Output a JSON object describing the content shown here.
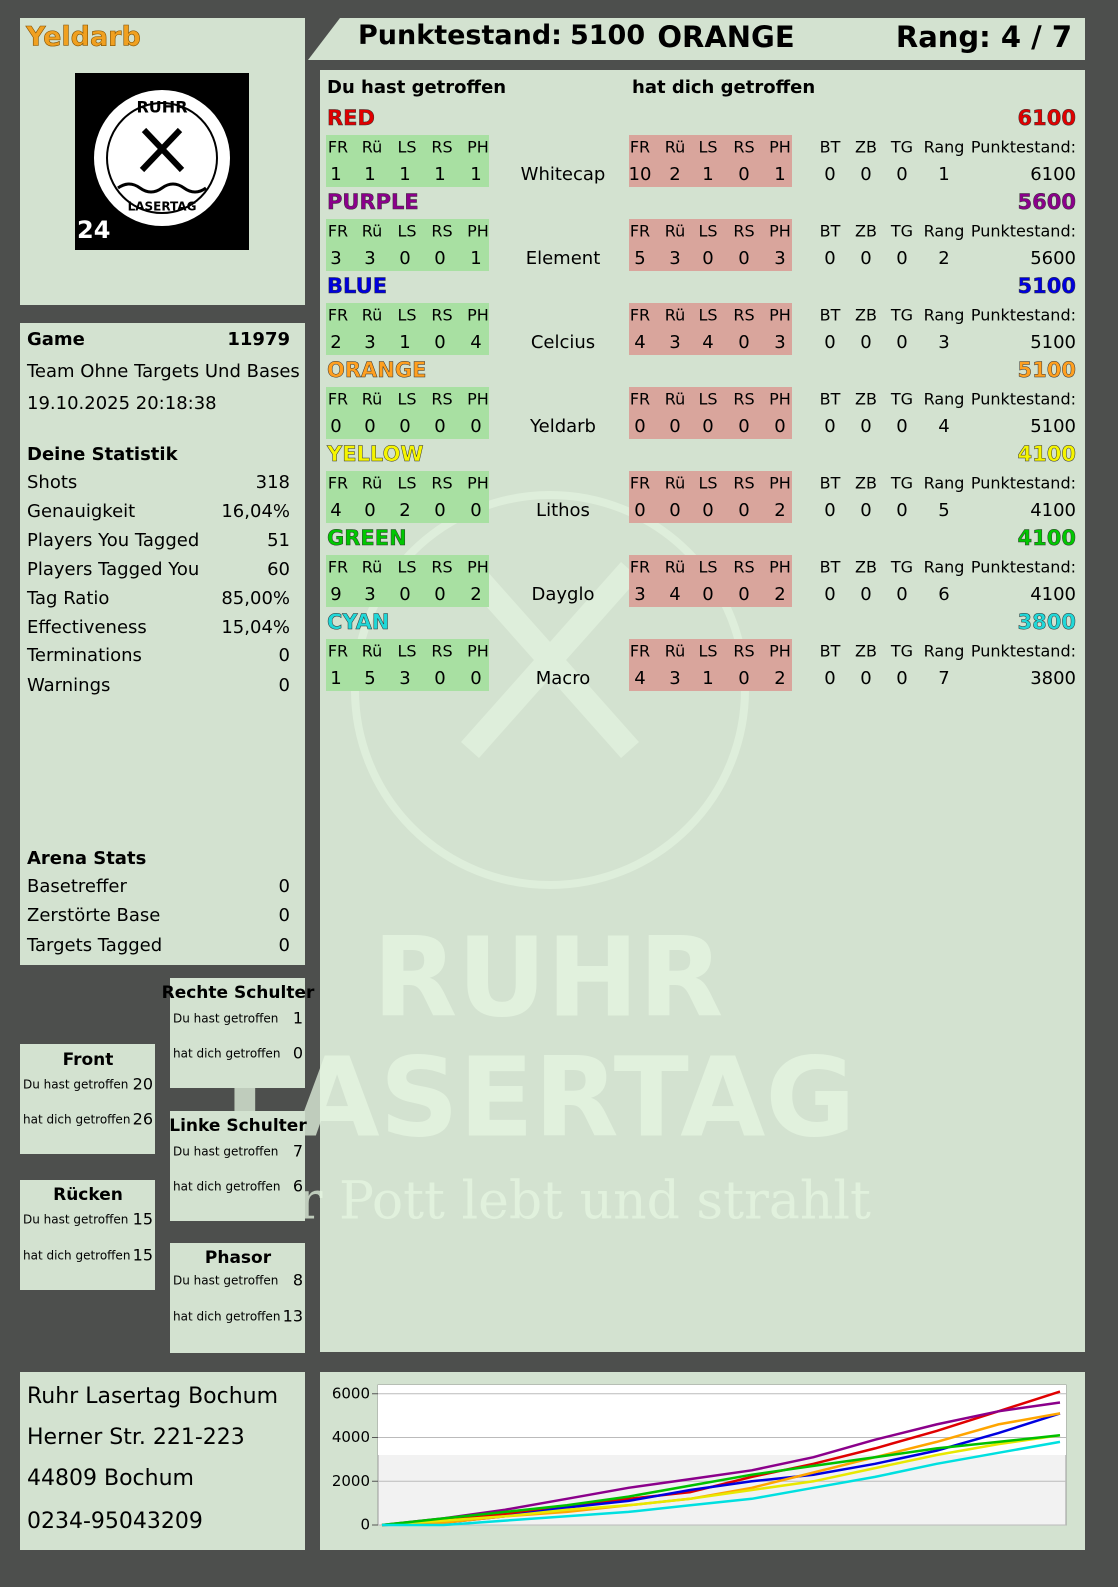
{
  "header": {
    "player": "Yeldarb",
    "score_label": "Punktestand:",
    "score": 5100,
    "team": "ORANGE",
    "rank": "Rang: 4 / 7"
  },
  "logo": {
    "top": "RUHR",
    "bottom": "LASERTAG",
    "badge": "24"
  },
  "game": {
    "label": "Game",
    "id": 11979,
    "mode": "Team Ohne Targets Und Bases",
    "datetime": "19.10.2025 20:18:38"
  },
  "stats": {
    "title": "Deine Statistik",
    "rows": [
      [
        "Shots",
        "318"
      ],
      [
        "Genauigkeit",
        "16,04%"
      ],
      [
        "Players You Tagged",
        "51"
      ],
      [
        "Players Tagged You",
        "60"
      ],
      [
        "Tag Ratio",
        "85,00%"
      ],
      [
        "Effectiveness",
        "15,04%"
      ],
      [
        "Terminations",
        "0"
      ],
      [
        "Warnings",
        "0"
      ]
    ]
  },
  "arena": {
    "title": "Arena Stats",
    "rows": [
      [
        "Basetreffer",
        "0"
      ],
      [
        "Zerstörte Base",
        "0"
      ],
      [
        "Targets Tagged",
        "0"
      ]
    ]
  },
  "zones": [
    {
      "title": "Front",
      "rows": [
        [
          "Du hast getroffen",
          20
        ],
        [
          "hat dich getroffen",
          26
        ]
      ]
    },
    {
      "title": "Rücken",
      "rows": [
        [
          "Du hast getroffen",
          15
        ],
        [
          "hat dich getroffen",
          15
        ]
      ]
    },
    {
      "title": "Rechte Schulter",
      "rows": [
        [
          "Du hast getroffen",
          1
        ],
        [
          "hat dich getroffen",
          0
        ]
      ]
    },
    {
      "title": "Linke Schulter",
      "rows": [
        [
          "Du hast getroffen",
          7
        ],
        [
          "hat dich getroffen",
          6
        ]
      ]
    },
    {
      "title": "Phasor",
      "rows": [
        [
          "Du hast getroffen",
          8
        ],
        [
          "hat dich getroffen",
          13
        ]
      ]
    }
  ],
  "teams_table": {
    "given_header": "Du hast getroffen",
    "taken_header": "hat dich getroffen",
    "hit_columns": [
      "FR",
      "Rü",
      "LS",
      "RS",
      "PH"
    ],
    "extra_columns": [
      "BT",
      "ZB",
      "TG",
      "Rang",
      "Punktestand:"
    ],
    "teams": [
      {
        "name": "RED",
        "color": "#e00000",
        "score": 6100,
        "player": "Whitecap",
        "given": [
          1,
          1,
          1,
          1,
          1
        ],
        "taken": [
          10,
          2,
          1,
          0,
          1
        ],
        "extra": [
          0,
          0,
          0,
          1,
          6100
        ]
      },
      {
        "name": "PURPLE",
        "color": "#8b008b",
        "score": 5600,
        "player": "Element",
        "given": [
          3,
          3,
          0,
          0,
          1
        ],
        "taken": [
          5,
          3,
          0,
          0,
          3
        ],
        "extra": [
          0,
          0,
          0,
          2,
          5600
        ]
      },
      {
        "name": "BLUE",
        "color": "#0000dd",
        "score": 5100,
        "player": "Celcius",
        "given": [
          2,
          3,
          1,
          0,
          4
        ],
        "taken": [
          4,
          3,
          4,
          0,
          3
        ],
        "extra": [
          0,
          0,
          0,
          3,
          5100
        ]
      },
      {
        "name": "ORANGE",
        "color": "#ffa020",
        "score": 5100,
        "player": "Yeldarb",
        "given": [
          0,
          0,
          0,
          0,
          0
        ],
        "taken": [
          0,
          0,
          0,
          0,
          0
        ],
        "extra": [
          0,
          0,
          0,
          4,
          5100
        ]
      },
      {
        "name": "YELLOW",
        "color": "#f5f500",
        "score": 4100,
        "player": "Lithos",
        "given": [
          4,
          0,
          2,
          0,
          0
        ],
        "taken": [
          0,
          0,
          0,
          0,
          2
        ],
        "extra": [
          0,
          0,
          0,
          5,
          4100
        ]
      },
      {
        "name": "GREEN",
        "color": "#00c800",
        "score": 4100,
        "player": "Dayglo",
        "given": [
          9,
          3,
          0,
          0,
          2
        ],
        "taken": [
          3,
          4,
          0,
          0,
          2
        ],
        "extra": [
          0,
          0,
          0,
          6,
          4100
        ]
      },
      {
        "name": "CYAN",
        "color": "#20d8d8",
        "score": 3800,
        "player": "Macro",
        "given": [
          1,
          5,
          3,
          0,
          0
        ],
        "taken": [
          4,
          3,
          1,
          0,
          2
        ],
        "extra": [
          0,
          0,
          0,
          7,
          3800
        ]
      }
    ]
  },
  "address": [
    "Ruhr Lasertag Bochum",
    "Herner Str. 221-223",
    "44809 Bochum",
    "0234-95043209"
  ],
  "watermark": {
    "line1": "RUHR",
    "line2": "LASERTAG",
    "slogan": "Der Pott lebt und strahlt"
  },
  "chart_data": {
    "type": "line",
    "ylim": [
      0,
      6400
    ],
    "yticks": [
      0,
      2000,
      4000,
      6000
    ],
    "grid": true,
    "series": [
      {
        "color": "#e00000",
        "values": [
          0,
          200,
          500,
          800,
          1200,
          1500,
          2200,
          2800,
          3500,
          4300,
          5200,
          6100
        ]
      },
      {
        "color": "#8b008b",
        "values": [
          0,
          300,
          700,
          1200,
          1700,
          2100,
          2500,
          3100,
          3900,
          4600,
          5200,
          5600
        ]
      },
      {
        "color": "#0000e0",
        "values": [
          0,
          100,
          400,
          800,
          1100,
          1600,
          2000,
          2300,
          2800,
          3400,
          4200,
          5100
        ]
      },
      {
        "color": "#ffa500",
        "values": [
          0,
          100,
          400,
          600,
          900,
          1200,
          1700,
          2400,
          3100,
          3800,
          4600,
          5100
        ]
      },
      {
        "color": "#e8e800",
        "values": [
          0,
          200,
          400,
          700,
          900,
          1200,
          1600,
          2000,
          2600,
          3200,
          3700,
          4100
        ]
      },
      {
        "color": "#00c000",
        "values": [
          0,
          300,
          600,
          900,
          1300,
          1800,
          2300,
          2700,
          3100,
          3500,
          3800,
          4100
        ]
      },
      {
        "color": "#00e0e0",
        "values": [
          0,
          0,
          200,
          400,
          600,
          900,
          1200,
          1700,
          2200,
          2800,
          3300,
          3800
        ]
      }
    ]
  }
}
